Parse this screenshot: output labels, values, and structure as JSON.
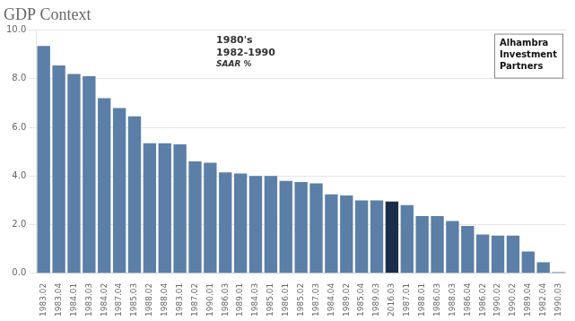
{
  "chart_data": {
    "type": "bar",
    "title": "GDP Context",
    "subtitle": [
      "1980's",
      "1982-1990",
      "SAAR %"
    ],
    "annotations": [
      "Alhambra",
      "Investment",
      "Partners"
    ],
    "categories": [
      "1983.02",
      "1983.04",
      "1984.01",
      "1983.03",
      "1984.02",
      "1987.04",
      "1985.03",
      "1988.02",
      "1988.04",
      "1983.01",
      "1987.02",
      "1990.01",
      "1986.03",
      "1989.01",
      "1984.03",
      "1985.01",
      "1986.01",
      "1985.02",
      "1987.03",
      "1984.04",
      "1989.02",
      "1985.04",
      "1989.03",
      "2016.03",
      "1987.01",
      "1988.01",
      "1986.03",
      "1988.03",
      "1986.04",
      "1986.02",
      "1990.02",
      "1990.02",
      "1989.04",
      "1982.04",
      "1990.03"
    ],
    "values": [
      9.35,
      8.55,
      8.2,
      8.1,
      7.2,
      6.8,
      6.45,
      5.35,
      5.35,
      5.3,
      4.6,
      4.55,
      4.15,
      4.1,
      4.0,
      4.0,
      3.8,
      3.75,
      3.7,
      3.25,
      3.2,
      3.0,
      3.0,
      2.95,
      2.8,
      2.35,
      2.35,
      2.15,
      1.95,
      1.6,
      1.55,
      1.55,
      0.9,
      0.45,
      0.05
    ],
    "colors": [
      "#5b7fa6",
      "#5b7fa6",
      "#5b7fa6",
      "#5b7fa6",
      "#5b7fa6",
      "#5b7fa6",
      "#5b7fa6",
      "#5b7fa6",
      "#5b7fa6",
      "#5b7fa6",
      "#5b7fa6",
      "#5b7fa6",
      "#5b7fa6",
      "#5b7fa6",
      "#5b7fa6",
      "#5b7fa6",
      "#5b7fa6",
      "#5b7fa6",
      "#5b7fa6",
      "#5b7fa6",
      "#5b7fa6",
      "#5b7fa6",
      "#5b7fa6",
      "#1a2e4a",
      "#5b7fa6",
      "#5b7fa6",
      "#5b7fa6",
      "#5b7fa6",
      "#5b7fa6",
      "#5b7fa6",
      "#5b7fa6",
      "#5b7fa6",
      "#5b7fa6",
      "#5b7fa6",
      "#5b7fa6"
    ],
    "ylim": [
      0,
      10.0
    ],
    "yticks": [
      {
        "value": 0.0,
        "label": "0.0"
      },
      {
        "value": 2.0,
        "label": "2.0"
      },
      {
        "value": 4.0,
        "label": "4.0"
      },
      {
        "value": 6.0,
        "label": "6.0"
      },
      {
        "value": 8.0,
        "label": "8.0"
      },
      {
        "value": 10.0,
        "label": "10.0"
      }
    ],
    "grid": true
  }
}
